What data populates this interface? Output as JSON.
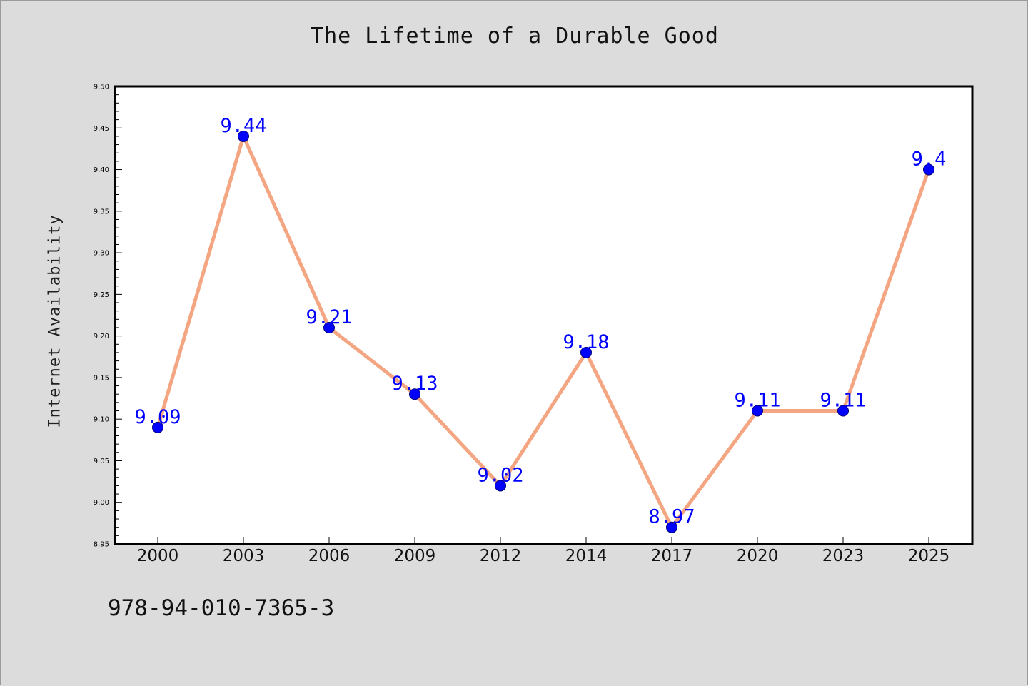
{
  "chart_data": {
    "type": "line",
    "title": "The Lifetime of a Durable Good",
    "xlabel": "",
    "ylabel": "Internet Availability",
    "categories": [
      "2000",
      "2003",
      "2006",
      "2009",
      "2012",
      "2014",
      "2017",
      "2020",
      "2023",
      "2025"
    ],
    "series": [
      {
        "values": [
          9.09,
          9.44,
          9.21,
          9.13,
          9.02,
          9.18,
          8.97,
          9.11,
          9.11,
          9.4
        ]
      }
    ],
    "data_labels": [
      "9.09",
      "9.44",
      "9.21",
      "9.13",
      "9.02",
      "9.18",
      "8.97",
      "9.11",
      "9.11",
      "9.4"
    ],
    "ylim": [
      8.95,
      9.5
    ],
    "yticks": [
      "8.95",
      "9.00",
      "9.05",
      "9.10",
      "9.15",
      "9.20",
      "9.25",
      "9.30",
      "9.35",
      "9.40",
      "9.45",
      "9.50"
    ],
    "grid": false,
    "line_color": "#f4a582",
    "marker_color": "#0000ff",
    "label_color": "#0000ff"
  },
  "footer": {
    "isbn": "978-94-010-7365-3"
  }
}
